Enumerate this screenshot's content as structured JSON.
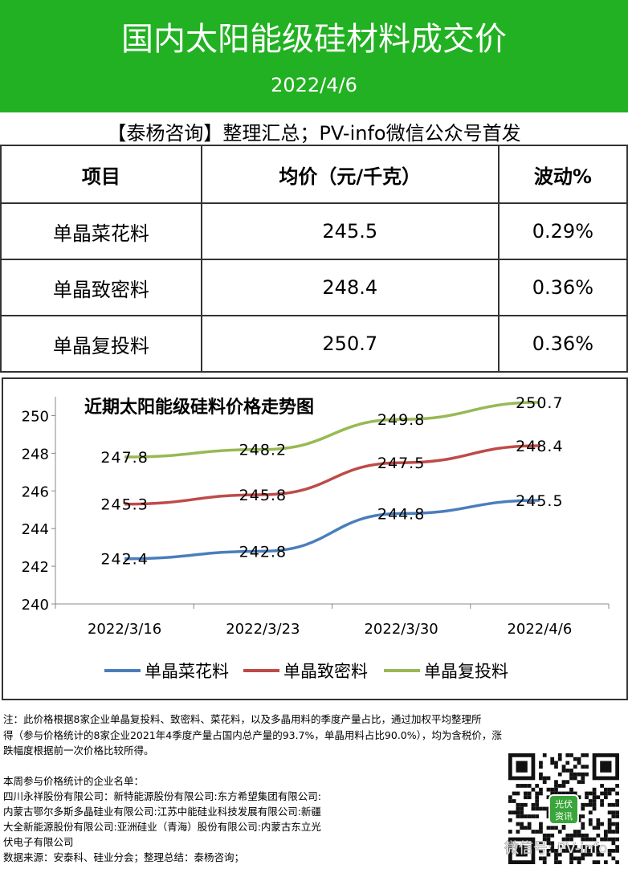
{
  "header": {
    "title": "国内太阳能级硅材料成交价",
    "date": "2022/4/6"
  },
  "subtitle": "【泰杨咨询】整理汇总；PV-info微信公众号首发",
  "table": {
    "columns": [
      "项目",
      "均价（元/千克）",
      "波动%"
    ],
    "rows": [
      [
        "单晶菜花料",
        "245.5",
        "0.29%"
      ],
      [
        "单晶致密料",
        "248.4",
        "0.36%"
      ],
      [
        "单晶复投料",
        "250.7",
        "0.36%"
      ]
    ]
  },
  "chart_data": {
    "type": "line",
    "title": "近期太阳能级硅料价格走势图",
    "categories": [
      "2022/3/16",
      "2022/3/23",
      "2022/3/30",
      "2022/4/6"
    ],
    "series": [
      {
        "name": "单晶菜花料",
        "color": "#4a7ebb",
        "values": [
          242.4,
          242.8,
          244.8,
          245.5
        ]
      },
      {
        "name": "单晶致密料",
        "color": "#be4b48",
        "values": [
          245.3,
          245.8,
          247.5,
          248.4
        ]
      },
      {
        "name": "单晶复投料",
        "color": "#98b954",
        "values": [
          247.8,
          248.2,
          249.8,
          250.7
        ]
      }
    ],
    "ylim": [
      240,
      251
    ],
    "yticks": [
      240,
      242,
      244,
      246,
      248,
      250
    ],
    "legend": "bottom"
  },
  "notes": {
    "lines": [
      "注：此价格根据8家企业单晶复投料、致密料、菜花料，以及多晶用料的季度产量占比，通过加权平均整理所",
      "得（参与价格统计的8家企业2021年4季度产量占国内总产量的93.7%，单晶用料占比90.0%），均为含税价，涨",
      "跌幅度根据前一次价格比较所得。"
    ],
    "companies": [
      "本周参与价格统计的企业名单：",
      "四川永祥股份有限公司：新特能源股份有限公司:东方希望集团有限公司:",
      "内蒙古鄂尔多斯多晶硅业有限公司:江苏中能硅业科技发展有限公司:新疆",
      "大全新能源股份有限公司:亚洲硅业（青海）股份有限公司:内蒙古东立光",
      "伏电子有限公司",
      "数据来源：安泰科、硅业分会；整理总结：泰杨咨询；"
    ]
  },
  "qr_logo": [
    "光伏",
    "资讯"
  ],
  "watermark": "微信号: PV-info"
}
